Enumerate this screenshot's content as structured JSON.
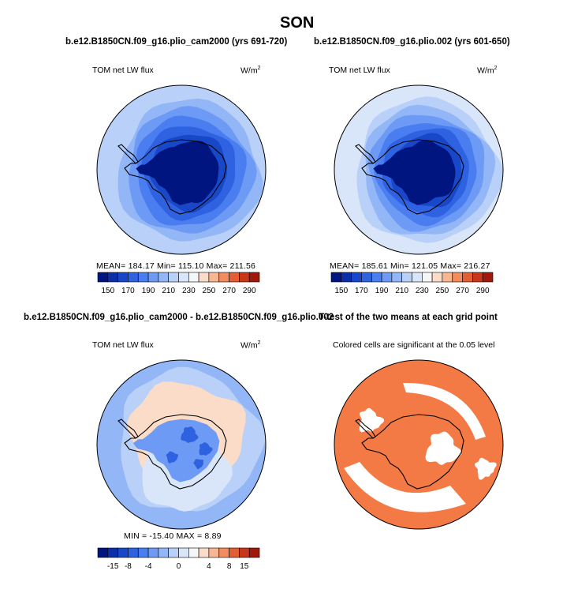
{
  "figure": {
    "title": "SON"
  },
  "panels": [
    {
      "title": "b.e12.B1850CN.f09_g16.plio_cam2000 (yrs 691-720)",
      "left_label": "TOM net LW flux",
      "units_base": "W/m",
      "units_exp": "2",
      "stats": "MEAN=  184.17   Min=  115.10   Max=  211.56"
    },
    {
      "title": "b.e12.B1850CN.f09_g16.plio.002 (yrs 601-650)",
      "left_label": "TOM net LW flux",
      "units_base": "W/m",
      "units_exp": "2",
      "stats": "MEAN=  185.61   Min=  121.05   Max=  216.27"
    },
    {
      "title": "b.e12.B1850CN.f09_g16.plio_cam2000 - b.e12.B1850CN.f09_g16.plio.002",
      "left_label": "TOM net LW flux",
      "units_base": "W/m",
      "units_exp": "2",
      "stats": "MIN =  -15.40  MAX =    8.89"
    },
    {
      "title": "T-test of the two means at each grid point",
      "subtitle": "Colored cells are significant at the 0.05 level"
    }
  ],
  "chart_data": [
    {
      "type": "heatmap",
      "title": "b.e12.B1850CN.f09_g16.plio_cam2000 (yrs 691-720)",
      "variable": "TOM net LW flux",
      "units": "W/m2",
      "mean": 184.17,
      "min": 115.1,
      "max": 211.56,
      "colorbar": {
        "tick_labels": [
          "150",
          "170",
          "190",
          "210",
          "230",
          "250",
          "270",
          "290"
        ],
        "levels": [
          150,
          160,
          170,
          180,
          190,
          200,
          210,
          220,
          230,
          240,
          250,
          260,
          270,
          280,
          290
        ],
        "colors": [
          "#00157f",
          "#0b2fa8",
          "#1848c8",
          "#2f62e0",
          "#4a7df0",
          "#6d9af5",
          "#93b6f7",
          "#b9d0f8",
          "#d9e5f9",
          "#f6f6f6",
          "#fbdcc8",
          "#f8b792",
          "#f28d5f",
          "#e35e33",
          "#c7381b",
          "#a01a0b"
        ]
      },
      "zones": [
        {
          "level_min": 200,
          "level_max": 212,
          "color": "#b9d0f8"
        },
        {
          "level_min": 190,
          "level_max": 200,
          "color": "#93b6f7"
        },
        {
          "level_min": 180,
          "level_max": 190,
          "color": "#6d9af5"
        },
        {
          "level_min": 170,
          "level_max": 180,
          "color": "#4a7df0"
        },
        {
          "level_min": 160,
          "level_max": 170,
          "color": "#2f62e0"
        },
        {
          "level_min": 150,
          "level_max": 160,
          "color": "#1848c8"
        },
        {
          "level_min": 115,
          "level_max": 150,
          "color": "#00157f"
        }
      ]
    },
    {
      "type": "heatmap",
      "title": "b.e12.B1850CN.f09_g16.plio.002 (yrs 601-650)",
      "variable": "TOM net LW flux",
      "units": "W/m2",
      "mean": 185.61,
      "min": 121.05,
      "max": 216.27,
      "colorbar": {
        "tick_labels": [
          "150",
          "170",
          "190",
          "210",
          "230",
          "250",
          "270",
          "290"
        ],
        "levels": [
          150,
          160,
          170,
          180,
          190,
          200,
          210,
          220,
          230,
          240,
          250,
          260,
          270,
          280,
          290
        ],
        "colors": [
          "#00157f",
          "#0b2fa8",
          "#1848c8",
          "#2f62e0",
          "#4a7df0",
          "#6d9af5",
          "#93b6f7",
          "#b9d0f8",
          "#d9e5f9",
          "#f6f6f6",
          "#fbdcc8",
          "#f8b792",
          "#f28d5f",
          "#e35e33",
          "#c7381b",
          "#a01a0b"
        ]
      },
      "zones": [
        {
          "level_min": 210,
          "level_max": 217,
          "color": "#d9e5f9"
        },
        {
          "level_min": 200,
          "level_max": 210,
          "color": "#b9d0f8"
        },
        {
          "level_min": 190,
          "level_max": 200,
          "color": "#93b6f7"
        },
        {
          "level_min": 180,
          "level_max": 190,
          "color": "#6d9af5"
        },
        {
          "level_min": 170,
          "level_max": 180,
          "color": "#4a7df0"
        },
        {
          "level_min": 160,
          "level_max": 170,
          "color": "#2f62e0"
        },
        {
          "level_min": 150,
          "level_max": 160,
          "color": "#1848c8"
        },
        {
          "level_min": 121,
          "level_max": 150,
          "color": "#00157f"
        }
      ]
    },
    {
      "type": "heatmap",
      "title": "b.e12.B1850CN.f09_g16.plio_cam2000 - b.e12.B1850CN.f09_g16.plio.002",
      "variable": "TOM net LW flux",
      "units": "W/m2",
      "min": -15.4,
      "max": 8.89,
      "colorbar": {
        "tick_labels": [
          "-15",
          "-8",
          "-4",
          "0",
          "4",
          "8",
          "15"
        ],
        "colors": [
          "#00157f",
          "#0b2fa8",
          "#1848c8",
          "#2f62e0",
          "#4a7df0",
          "#6d9af5",
          "#93b6f7",
          "#b9d0f8",
          "#d9e5f9",
          "#f6f6f6",
          "#fbdcc8",
          "#f8b792",
          "#f28d5f",
          "#e35e33",
          "#c7381b",
          "#a01a0b"
        ]
      },
      "zones": [
        {
          "level_min": -4,
          "level_max": 0,
          "color": "#93b6f7"
        },
        {
          "level_min": -2,
          "level_max": 0,
          "color": "#b9d0f8"
        },
        {
          "level_min": 0,
          "level_max": 2,
          "color": "#fbdcc8"
        },
        {
          "level_min": -2,
          "level_max": 0,
          "color": "#d9e5f9"
        },
        {
          "level_min": -8,
          "level_max": -4,
          "color": "#6d9af5"
        },
        {
          "level_min": -15,
          "level_max": -8,
          "color": "#2f62e0"
        }
      ]
    },
    {
      "type": "heatmap",
      "title": "T-test of the two means at each grid point",
      "significance_level": 0.05,
      "significant_color": "#f47a45",
      "nonsignificant_color": "#ffffff"
    }
  ]
}
